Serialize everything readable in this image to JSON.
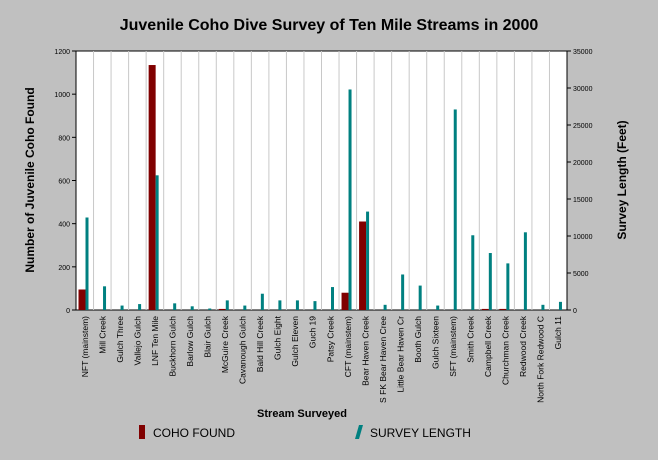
{
  "chart_data": {
    "type": "bar",
    "title": "Juvenile Coho Dive Survey of Ten Mile Streams in 2000",
    "xlabel": "Stream Surveyed",
    "ylabel_left": "Number of Juvenile Coho Found",
    "ylabel_right": "Survey Length (Feet)",
    "y_left_lim": [
      0,
      1200
    ],
    "y_left_ticks": [
      "0",
      "200",
      "400",
      "600",
      "800",
      "1000",
      "1200"
    ],
    "y_right_lim": [
      0,
      35000
    ],
    "y_right_ticks": [
      "0",
      "5000",
      "10000",
      "15000",
      "20000",
      "25000",
      "30000",
      "35000"
    ],
    "grid": "vertical",
    "legend_position": "bottom",
    "colors": {
      "coho": "#800000",
      "survey": "#008080",
      "background": "#c0c0c0",
      "plot_bg": "#ffffff"
    },
    "categories": [
      "NFT (mainstem)",
      "Mill Creek",
      "Gulch Three",
      "Vallejo Gulch",
      "LNF Ten Mile",
      "Buckhorn Gulch",
      "Barlow Gulch",
      "Blair Gulch",
      "McGuire Creek",
      "Cavanough Gulch",
      "Bald Hill Creek",
      "Gulch Eight",
      "Gulch Eleven",
      "Guch 19",
      "Patsy Creek",
      "CFT (mainstem)",
      "Bear Haven Creek",
      "S FK Bear Haven Cree",
      "Little Bear Haven Cr",
      "Booth Gulch",
      "Gulch Sixteen",
      "SFT (mainstem)",
      "Smith Creek",
      "Campbell Creek",
      "Churchman Creek",
      "Redwood Creek",
      "North Fork Redwood C",
      "Gulch 11"
    ],
    "series": [
      {
        "name": "COHO FOUND",
        "axis": "left",
        "values": [
          95,
          0,
          0,
          0,
          1135,
          0,
          0,
          0,
          5,
          0,
          0,
          0,
          0,
          0,
          0,
          80,
          410,
          0,
          0,
          0,
          0,
          0,
          0,
          5,
          5,
          0,
          0,
          0
        ]
      },
      {
        "name": "SURVEY LENGTH",
        "axis": "right",
        "values": [
          12500,
          3200,
          600,
          800,
          18200,
          900,
          500,
          200,
          1300,
          600,
          2200,
          1300,
          1300,
          1200,
          3100,
          29800,
          13300,
          700,
          4800,
          3300,
          600,
          27100,
          10100,
          7700,
          6300,
          10500,
          700,
          1100
        ]
      }
    ]
  }
}
